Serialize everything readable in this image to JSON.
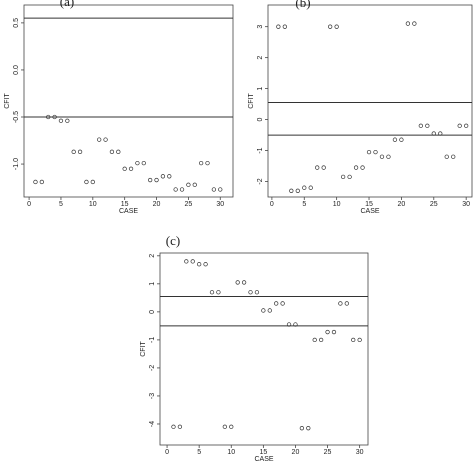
{
  "chart_data": [
    {
      "type": "scatter",
      "title": "(a)",
      "xlabel": "CASE",
      "ylabel": "CFIT",
      "color": "#333333",
      "x": [
        1,
        2,
        3,
        4,
        5,
        6,
        7,
        8,
        9,
        10,
        11,
        12,
        13,
        14,
        15,
        16,
        17,
        18,
        19,
        20,
        21,
        22,
        23,
        24,
        25,
        26,
        27,
        28,
        29,
        30
      ],
      "values": [
        -1.19,
        -1.19,
        -0.5,
        -0.5,
        -0.54,
        -0.54,
        -0.87,
        -0.87,
        -1.19,
        -1.19,
        -0.74,
        -0.74,
        -0.87,
        -0.87,
        -1.05,
        -1.05,
        -0.99,
        -0.99,
        -1.17,
        -1.17,
        -1.13,
        -1.13,
        -1.27,
        -1.27,
        -1.22,
        -1.22,
        -0.99,
        -0.99,
        -1.27,
        -1.27
      ],
      "xlim": [
        -0.8,
        32
      ],
      "ylim": [
        -1.35,
        0.69
      ],
      "xticks": [
        0,
        5,
        10,
        15,
        20,
        25,
        30
      ],
      "yticks": [
        0.5,
        {
          "value": 0,
          "label": "0.0"
        },
        -0.5,
        {
          "value": -1,
          "label": "-1.0"
        }
      ],
      "hlines": [
        0.55,
        -0.5
      ]
    },
    {
      "type": "scatter",
      "title": "(b)",
      "xlabel": "CASE",
      "ylabel": "CFIT",
      "color": "#333333",
      "x": [
        1,
        2,
        3,
        4,
        5,
        6,
        7,
        8,
        9,
        10,
        11,
        12,
        13,
        14,
        15,
        16,
        17,
        18,
        19,
        20,
        21,
        22,
        23,
        24,
        25,
        26,
        27,
        28,
        29,
        30
      ],
      "values": [
        3,
        3,
        -2.3,
        -2.3,
        -2.2,
        -2.2,
        -1.55,
        -1.55,
        3,
        3,
        -1.85,
        -1.85,
        -1.55,
        -1.55,
        -1.05,
        -1.05,
        -1.2,
        -1.2,
        -0.65,
        -0.65,
        3.1,
        3.1,
        -0.2,
        -0.2,
        -0.45,
        -0.45,
        -1.2,
        -1.2,
        -0.2,
        -0.2
      ],
      "xlim": [
        -0.6,
        30.9
      ],
      "ylim": [
        -2.5,
        3.7
      ],
      "xticks": [
        0,
        5,
        10,
        15,
        20,
        25,
        30
      ],
      "yticks": [
        3,
        2,
        1,
        0,
        -1,
        -2
      ],
      "hlines": [
        0.55,
        -0.5
      ]
    },
    {
      "type": "scatter",
      "title": "(c)",
      "xlabel": "CASE",
      "ylabel": "CFIT",
      "color": "#333333",
      "x": [
        1,
        2,
        3,
        4,
        5,
        6,
        7,
        8,
        9,
        10,
        11,
        12,
        13,
        14,
        15,
        16,
        17,
        18,
        19,
        20,
        21,
        22,
        23,
        24,
        25,
        26,
        27,
        28,
        29,
        30
      ],
      "values": [
        -4.1,
        -4.1,
        1.8,
        1.8,
        1.7,
        1.7,
        0.7,
        0.7,
        -4.1,
        -4.1,
        1.05,
        1.05,
        0.7,
        0.7,
        0.05,
        0.05,
        0.3,
        0.3,
        -0.45,
        -0.45,
        -4.15,
        -4.15,
        -1,
        -1,
        -0.72,
        -0.72,
        0.3,
        0.3,
        -1,
        -1
      ],
      "xlim": [
        -1.1,
        31.3
      ],
      "ylim": [
        -4.75,
        2.1
      ],
      "xticks": [
        0,
        5,
        10,
        15,
        20,
        25,
        30
      ],
      "yticks": [
        2,
        1,
        0,
        -1,
        -2,
        -3,
        -4
      ],
      "hlines": [
        0.55,
        -0.5
      ]
    }
  ]
}
